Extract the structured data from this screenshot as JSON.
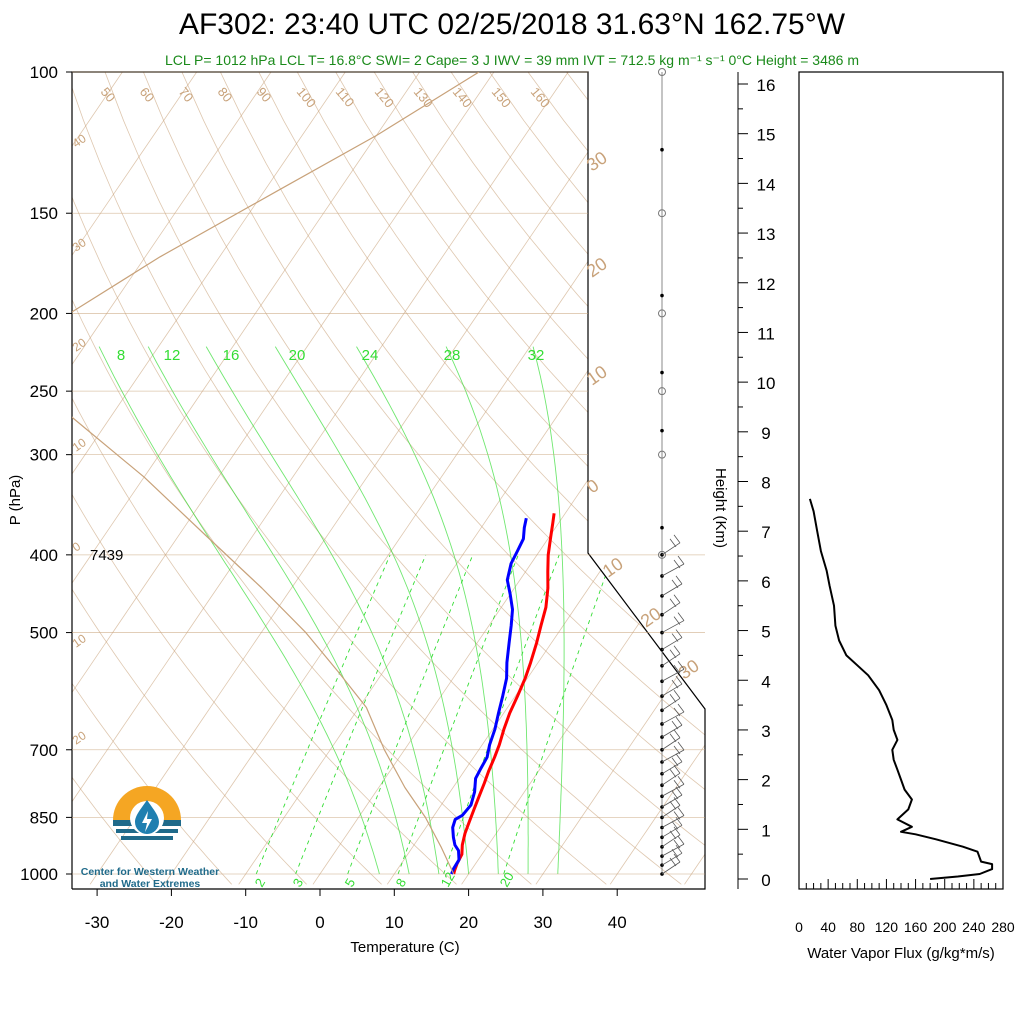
{
  "header": {
    "title": "AF302: 23:40 UTC 02/25/2018  31.63°N 162.75°W",
    "subtitle": "LCL P= 1012 hPa  LCL T= 16.8°C  SWI= 2  Cape= 3 J  IWV = 39 mm  IVT = 712.5 kg m⁻¹ s⁻¹  0°C Height = 3486 m"
  },
  "logo": {
    "line1": "Center for Western Weather",
    "line2": "and Water Extremes",
    "colors": {
      "sun": "#f5a623",
      "drop": "#1f7fb0",
      "waves": "#1f6a8a"
    }
  },
  "colors": {
    "temperature": "#ff0000",
    "dewpoint": "#0000ff",
    "dry_adiabat": "#c8a27a",
    "isotherm": "#c8a27a",
    "mixing_ratio": "#33dd33",
    "moist_adiabat": "#33dd33",
    "parcel": "#c8a27a",
    "wind": "#555555",
    "flux": "#000000"
  },
  "chart_data": [
    {
      "type": "line",
      "name": "skew-t",
      "xlabel": "Temperature (C)",
      "ylabel": "P (hPa)",
      "x_ticks": [
        "-30",
        "-20",
        "-10",
        "0",
        "10",
        "20",
        "30",
        "40"
      ],
      "y_ticks": [
        "100",
        "150",
        "200",
        "250",
        "300",
        "400",
        "500",
        "700",
        "850",
        "1000"
      ],
      "ylim": [
        1030,
        100
      ],
      "xlim": [
        -34,
        36
      ],
      "annotation": "7439",
      "dry_adiabat_labels": [
        "50",
        "60",
        "70",
        "80",
        "90",
        "100",
        "110",
        "120",
        "130",
        "140",
        "150",
        "160"
      ],
      "isotherm_labels": [
        "40",
        "30",
        "20",
        "10",
        "0",
        "10",
        "20",
        "30",
        "20",
        "10",
        "0",
        "10",
        "20",
        "30"
      ],
      "mixing_ratio_labels": [
        "2",
        "3",
        "5",
        "8",
        "12",
        "20"
      ],
      "moist_adiabat_labels": [
        "8",
        "12",
        "16",
        "20",
        "24",
        "28",
        "32"
      ],
      "series": [
        {
          "name": "temperature",
          "points": [
            [
              18,
              1000
            ],
            [
              17.8,
              990
            ],
            [
              17.5,
              970
            ],
            [
              17.3,
              945
            ],
            [
              16.5,
              920
            ],
            [
              15.8,
              890
            ],
            [
              15.3,
              860
            ],
            [
              14.8,
              830
            ],
            [
              14.3,
              800
            ],
            [
              13.8,
              770
            ],
            [
              13.3,
              745
            ],
            [
              12.8,
              715
            ],
            [
              12.3,
              690
            ],
            [
              11.5,
              660
            ],
            [
              10.8,
              630
            ],
            [
              10.3,
              600
            ],
            [
              9.7,
              570
            ],
            [
              9.0,
              545
            ],
            [
              8.0,
              515
            ],
            [
              7.0,
              490
            ],
            [
              6.0,
              465
            ],
            [
              4.5,
              440
            ],
            [
              3.0,
              420
            ],
            [
              1.5,
              400
            ],
            [
              0.2,
              380
            ],
            [
              -0.8,
              365
            ],
            [
              -1.5,
              355
            ]
          ]
        },
        {
          "name": "dewpoint",
          "points": [
            [
              17.7,
              1000
            ],
            [
              17.5,
              985
            ],
            [
              17.4,
              960
            ],
            [
              16.5,
              935
            ],
            [
              15.5,
              920
            ],
            [
              14.6,
              900
            ],
            [
              13.6,
              875
            ],
            [
              13.2,
              855
            ],
            [
              13.8,
              845
            ],
            [
              14.0,
              820
            ],
            [
              13.3,
              790
            ],
            [
              12.2,
              760
            ],
            [
              12.0,
              740
            ],
            [
              11.8,
              715
            ],
            [
              11.0,
              690
            ],
            [
              10.3,
              660
            ],
            [
              9.3,
              630
            ],
            [
              8.3,
              600
            ],
            [
              7.2,
              570
            ],
            [
              5.8,
              545
            ],
            [
              4.3,
              515
            ],
            [
              3.0,
              490
            ],
            [
              1.7,
              468
            ],
            [
              0.0,
              448
            ],
            [
              -1.7,
              430
            ],
            [
              -2.7,
              410
            ],
            [
              -3.0,
              395
            ],
            [
              -3.3,
              382
            ],
            [
              -4.2,
              370
            ],
            [
              -4.8,
              360
            ]
          ]
        },
        {
          "name": "parcel",
          "points": [
            [
              18,
              1000
            ],
            [
              13.8,
              925
            ],
            [
              9.0,
              850
            ],
            [
              3.5,
              780
            ],
            [
              -2.7,
              700
            ],
            [
              -9.0,
              620
            ],
            [
              -16.0,
              560
            ],
            [
              -24.0,
              500
            ],
            [
              -34.0,
              440
            ],
            [
              -46.0,
              380
            ],
            [
              -60.0,
              320
            ],
            [
              -75.0,
              270
            ],
            [
              -90.0,
              230
            ],
            [
              -85.0,
              200
            ],
            [
              -78.0,
              170
            ],
            [
              -68.0,
              140
            ],
            [
              -60.0,
              120
            ],
            [
              -52.0,
              100
            ]
          ]
        }
      ],
      "wind_barbs_pressures": [
        1000,
        975,
        950,
        925,
        900,
        875,
        850,
        825,
        800,
        775,
        750,
        725,
        700,
        675,
        650,
        625,
        600,
        575,
        550,
        525,
        500,
        475,
        450,
        425,
        400
      ]
    },
    {
      "type": "line",
      "name": "water-vapor-flux",
      "xlabel": "Water Vapor Flux (g/kg*m/s)",
      "ylabel": "Height (Km)",
      "x_ticks": [
        "0",
        "40",
        "80",
        "120",
        "160",
        "200",
        "240",
        "280"
      ],
      "y_ticks": [
        "0",
        "1",
        "2",
        "3",
        "4",
        "5",
        "6",
        "7",
        "8",
        "9",
        "10",
        "11",
        "12",
        "13",
        "14",
        "15",
        "16"
      ],
      "xlim": [
        0,
        280
      ],
      "ylim": [
        -0.2,
        16.3
      ],
      "series": [
        {
          "name": "flux",
          "points": [
            [
              180,
              0.0
            ],
            [
              218,
              0.05
            ],
            [
              248,
              0.1
            ],
            [
              265,
              0.2
            ],
            [
              265,
              0.3
            ],
            [
              250,
              0.35
            ],
            [
              245,
              0.55
            ],
            [
              225,
              0.65
            ],
            [
              188,
              0.8
            ],
            [
              160,
              0.9
            ],
            [
              140,
              0.95
            ],
            [
              155,
              1.05
            ],
            [
              135,
              1.2
            ],
            [
              150,
              1.4
            ],
            [
              155,
              1.6
            ],
            [
              145,
              1.8
            ],
            [
              140,
              2.0
            ],
            [
              135,
              2.2
            ],
            [
              130,
              2.4
            ],
            [
              128,
              2.6
            ],
            [
              135,
              2.8
            ],
            [
              130,
              3.0
            ],
            [
              128,
              3.2
            ],
            [
              120,
              3.5
            ],
            [
              110,
              3.8
            ],
            [
              95,
              4.1
            ],
            [
              80,
              4.3
            ],
            [
              65,
              4.5
            ],
            [
              55,
              4.8
            ],
            [
              50,
              5.1
            ],
            [
              48,
              5.5
            ],
            [
              42,
              5.9
            ],
            [
              38,
              6.2
            ],
            [
              30,
              6.6
            ],
            [
              25,
              7.0
            ],
            [
              20,
              7.4
            ],
            [
              15,
              7.65
            ]
          ]
        }
      ]
    }
  ]
}
